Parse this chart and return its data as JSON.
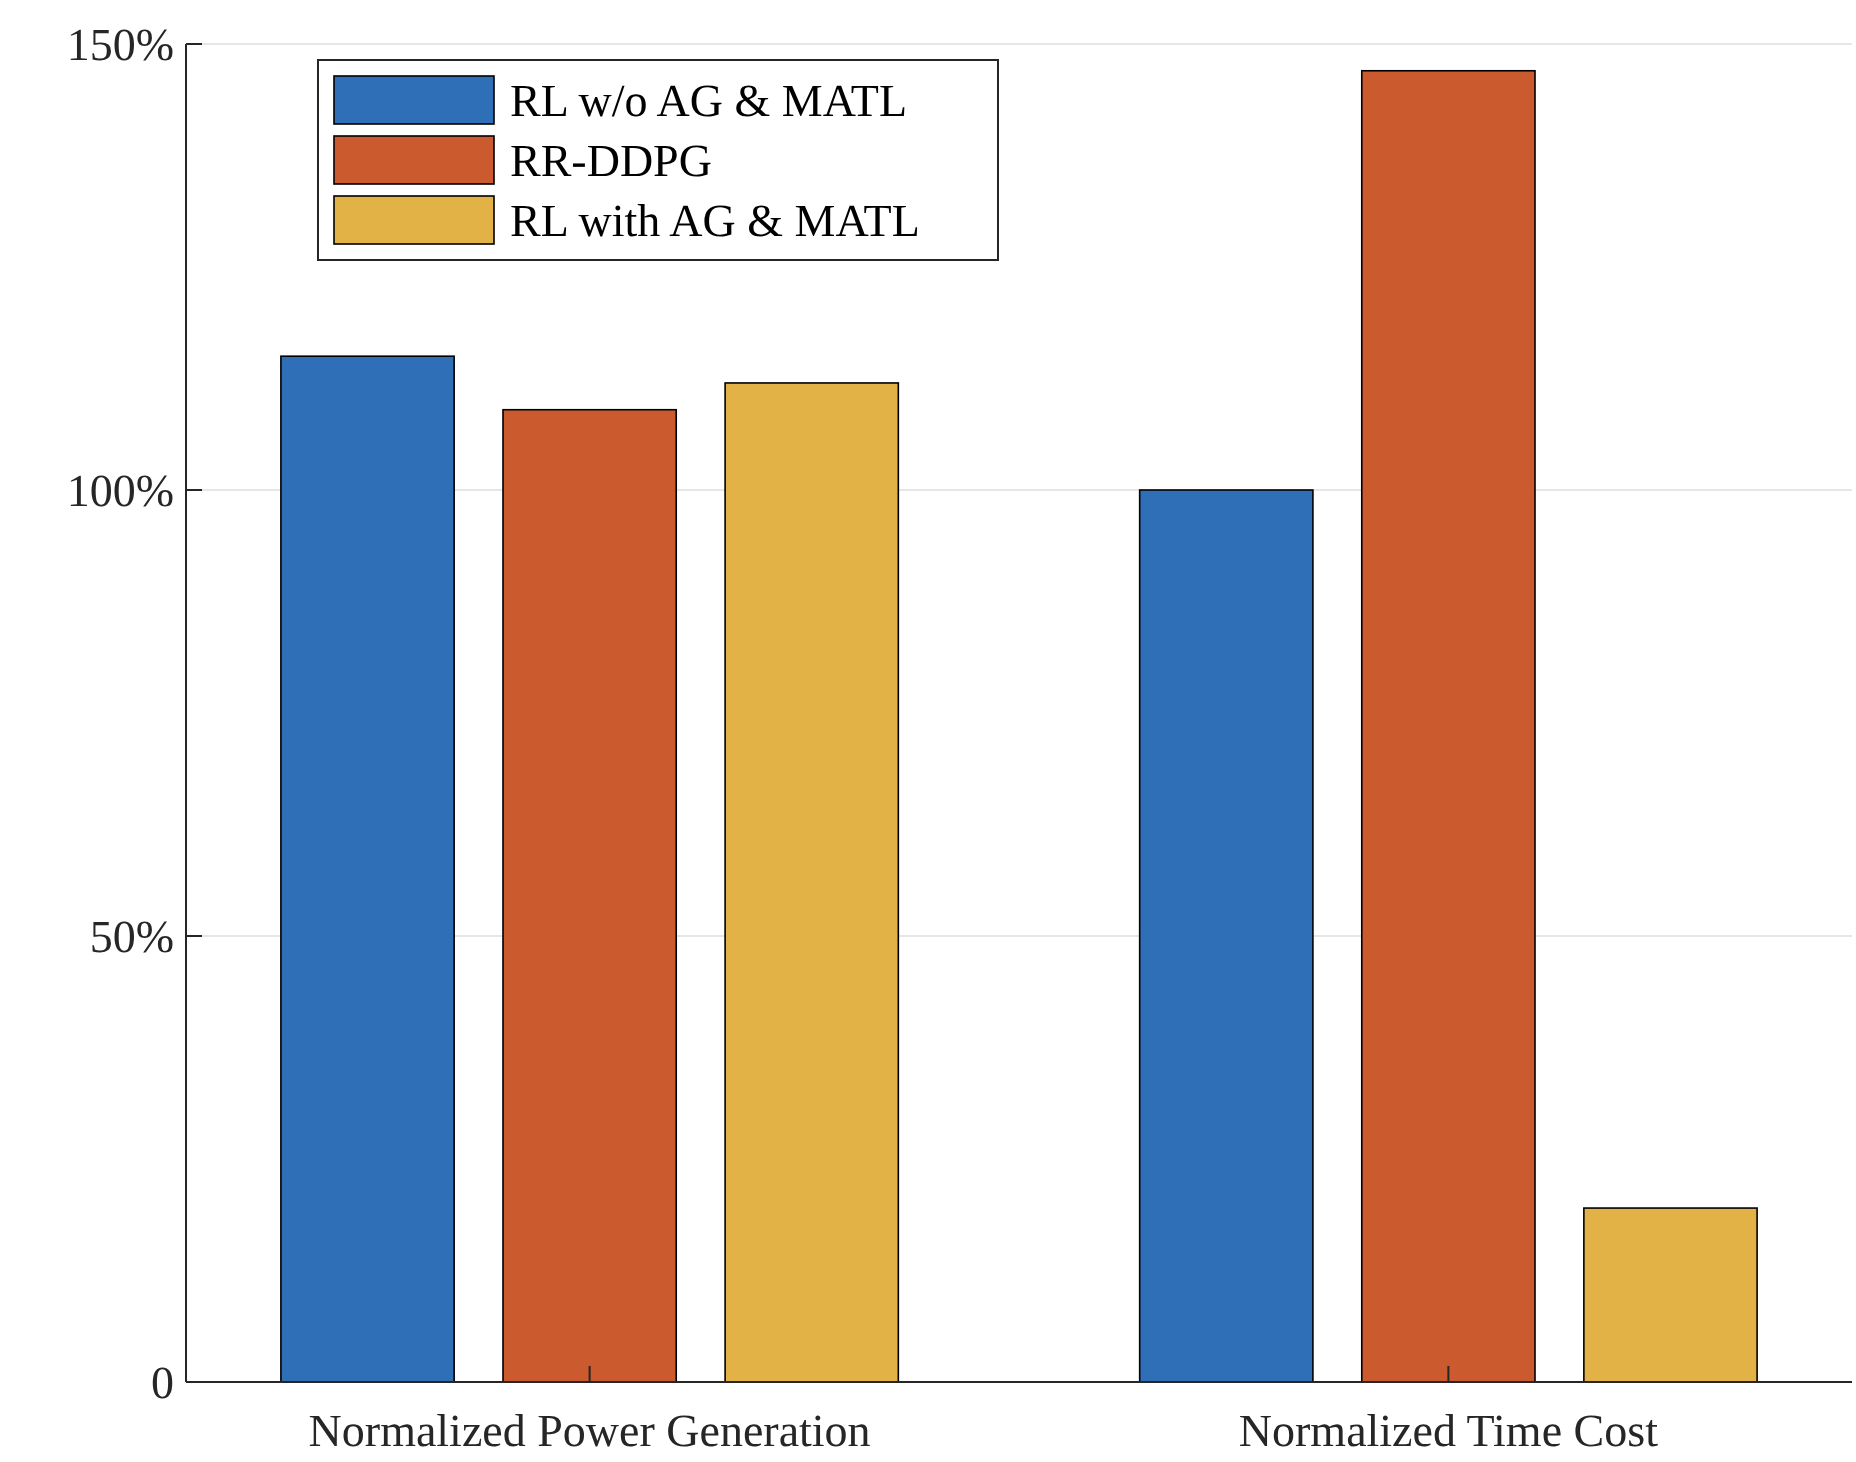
{
  "chart_data": {
    "type": "bar",
    "categories": [
      "Normalized Power Generation",
      "Normalized Time Cost"
    ],
    "series": [
      {
        "name": "RL w/o AG & MATL",
        "color": "#2e6fb7",
        "values": [
          115,
          100
        ]
      },
      {
        "name": "RR-DDPG",
        "color": "#cb5a2e",
        "values": [
          109,
          147
        ]
      },
      {
        "name": "RL with AG & MATL",
        "color": "#e2b246",
        "values": [
          112,
          19.5
        ]
      }
    ],
    "ylim": [
      0,
      150
    ],
    "yticks": [
      0,
      {
        "value": 50,
        "label": "50%"
      },
      {
        "value": 100,
        "label": "100%"
      },
      {
        "value": 150,
        "label": "150%"
      }
    ],
    "grid": "y",
    "legend": "top left"
  }
}
